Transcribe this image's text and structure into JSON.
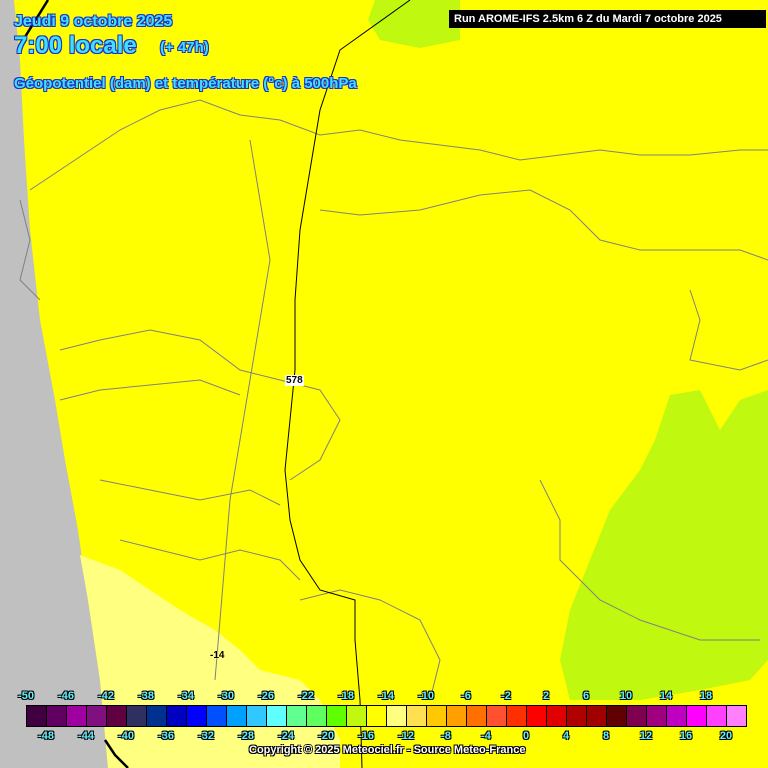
{
  "header": {
    "date": "Jeudi 9 octobre 2025",
    "time": "7:00 locale",
    "lead": "(+ 47h)",
    "parameter": "Géopotentiel (dam) et température (°c) à 500hPa",
    "run": "Run AROME-IFS 2.5km 6 Z du Mardi 7 octobre 2025"
  },
  "map": {
    "contour_labels": [
      "578",
      "-14"
    ],
    "colors": {
      "field_main": "#ffff00",
      "field_cold": "#ffff80",
      "field_warm": "#c0f810",
      "outside_domain": "#c0c0c0",
      "borders": "#808080"
    }
  },
  "legend": {
    "values": [
      -50,
      -48,
      -46,
      -44,
      -42,
      -40,
      -38,
      -36,
      -34,
      -32,
      -30,
      -28,
      -26,
      -24,
      -22,
      -20,
      -18,
      -16,
      -14,
      -12,
      -10,
      -8,
      -6,
      -4,
      -2,
      0,
      2,
      4,
      6,
      8,
      10,
      12,
      14,
      16,
      18,
      20
    ],
    "labels": [
      "-50",
      "-48",
      "-46",
      "-44",
      "-42",
      "-40",
      "-38",
      "-36",
      "-34",
      "-32",
      "-30",
      "-28",
      "-26",
      "-24",
      "-22",
      "-20",
      "-18",
      "-16",
      "-14",
      "-12",
      "-10",
      "-8",
      "-6",
      "-4",
      "-2",
      "0",
      "2",
      "4",
      "6",
      "8",
      "10",
      "12",
      "14",
      "16",
      "18",
      "20"
    ],
    "colors": [
      "#400040",
      "#600060",
      "#a000a0",
      "#801080",
      "#600040",
      "#303060",
      "#003090",
      "#0000c0",
      "#0000ff",
      "#0050ff",
      "#00a0ff",
      "#30c8ff",
      "#60ffff",
      "#60ff90",
      "#60ff60",
      "#60ff00",
      "#c0f810",
      "#ffff00",
      "#ffff80",
      "#ffe050",
      "#ffc800",
      "#ffa000",
      "#ff7000",
      "#ff5030",
      "#ff3000",
      "#ff0000",
      "#e00000",
      "#b00000",
      "#a00000",
      "#600000",
      "#800050",
      "#a00080",
      "#c000c0",
      "#ff00ff",
      "#ff40ff",
      "#ff80ff"
    ]
  },
  "footer": {
    "copyright": "Copyright © 2025 Meteociel.fr - Source Meteo-France"
  }
}
